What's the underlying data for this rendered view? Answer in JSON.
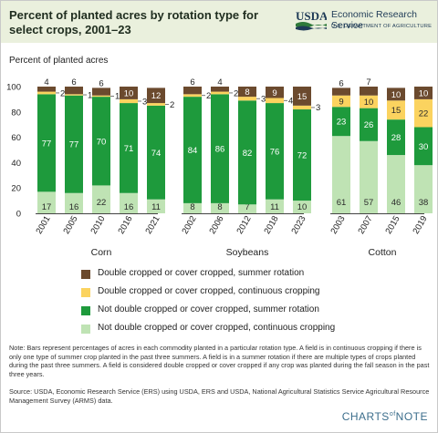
{
  "header": {
    "title": "Percent of planted acres by rotation type for select crops, 2001–23",
    "logo_text": "USDA",
    "org_name": "Economic Research Service",
    "org_sub": "U.S. DEPARTMENT OF AGRICULTURE"
  },
  "colors": {
    "header_bg": "#eaf0dd",
    "double_summer": "#6b4a2e",
    "double_continuous": "#fbd35f",
    "not_double_summer": "#1e9a3c",
    "not_double_continuous": "#bfe3b4",
    "brand": "#3c6e8c"
  },
  "chart_data": {
    "type": "bar",
    "stacked": true,
    "ylabel": "Percent of planted acres",
    "ylim": [
      0,
      100
    ],
    "yticks": [
      0,
      20,
      40,
      60,
      80,
      100
    ],
    "groups": [
      {
        "name": "Corn",
        "categories": [
          "2001",
          "2005",
          "2010",
          "2016",
          "2021"
        ],
        "not_double_continuous": [
          17,
          16,
          22,
          16,
          11
        ],
        "not_double_summer": [
          77,
          77,
          70,
          71,
          74
        ],
        "double_continuous": [
          2,
          1,
          1,
          3,
          2
        ],
        "double_summer": [
          4,
          6,
          6,
          10,
          12
        ]
      },
      {
        "name": "Soybeans",
        "categories": [
          "2002",
          "2006",
          "2012",
          "2018",
          "2023"
        ],
        "not_double_continuous": [
          8,
          8,
          7,
          11,
          10
        ],
        "not_double_summer": [
          84,
          86,
          82,
          76,
          72
        ],
        "double_continuous": [
          2,
          2,
          3,
          4,
          3
        ],
        "double_summer": [
          6,
          4,
          8,
          9,
          15
        ]
      },
      {
        "name": "Cotton",
        "categories": [
          "2003",
          "2007",
          "2015",
          "2019"
        ],
        "not_double_continuous": [
          61,
          57,
          46,
          38
        ],
        "not_double_summer": [
          23,
          26,
          28,
          30
        ],
        "double_continuous": [
          9,
          10,
          15,
          22
        ],
        "double_summer": [
          6,
          7,
          10,
          10
        ]
      }
    ],
    "series_order": [
      "not_double_continuous",
      "not_double_summer",
      "double_continuous",
      "double_summer"
    ],
    "legend": [
      {
        "key": "double_summer",
        "label": "Double cropped or cover cropped, summer rotation"
      },
      {
        "key": "double_continuous",
        "label": "Double cropped or cover cropped, continuous cropping"
      },
      {
        "key": "not_double_summer",
        "label": "Not double cropped or cover cropped, summer rotation"
      },
      {
        "key": "not_double_continuous",
        "label": "Not double cropped or cover cropped, continuous cropping"
      }
    ],
    "grid": false
  },
  "footer": {
    "note": "Note: Bars represent percentages of acres in each commodity planted in a particular rotation type. A field is in continuous cropping if there is only one type of summer crop planted in the past three summers. A field is in a summer rotation if there are multiple types of crops planted during the past three summers. A field is considered double cropped or cover cropped if any crop was planted during the fall season in the past three years.",
    "source": "Source: USDA, Economic Research Service (ERS) using USDA, ERS and USDA, National Agricultural Statistics Service Agricultural Resource Management Survey (ARMS) data.",
    "brand_prefix": "CHARTS",
    "brand_of": "of",
    "brand_suffix": "NOTE"
  }
}
